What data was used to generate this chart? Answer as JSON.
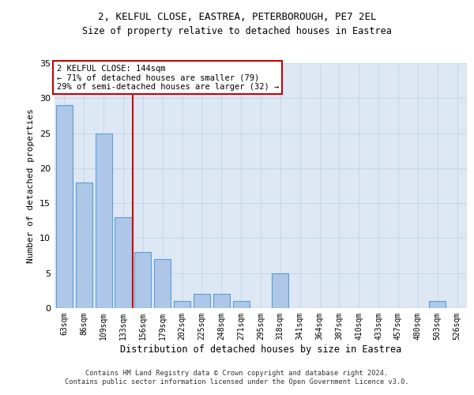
{
  "title_line1": "2, KELFUL CLOSE, EASTREA, PETERBOROUGH, PE7 2EL",
  "title_line2": "Size of property relative to detached houses in Eastrea",
  "xlabel": "Distribution of detached houses by size in Eastrea",
  "ylabel": "Number of detached properties",
  "categories": [
    "63sqm",
    "86sqm",
    "109sqm",
    "133sqm",
    "156sqm",
    "179sqm",
    "202sqm",
    "225sqm",
    "248sqm",
    "271sqm",
    "295sqm",
    "318sqm",
    "341sqm",
    "364sqm",
    "387sqm",
    "410sqm",
    "433sqm",
    "457sqm",
    "480sqm",
    "503sqm",
    "526sqm"
  ],
  "values": [
    29,
    18,
    25,
    13,
    8,
    7,
    1,
    2,
    2,
    1,
    0,
    5,
    0,
    0,
    0,
    0,
    0,
    0,
    0,
    1,
    0
  ],
  "bar_color": "#aec6e8",
  "bar_edge_color": "#5a9fd4",
  "vline_color": "#cc0000",
  "vline_x_index": 3.5,
  "annotation_text": "2 KELFUL CLOSE: 144sqm\n← 71% of detached houses are smaller (79)\n29% of semi-detached houses are larger (32) →",
  "annotation_box_color": "#ffffff",
  "annotation_box_edge_color": "#cc0000",
  "ylim": [
    0,
    35
  ],
  "yticks": [
    0,
    5,
    10,
    15,
    20,
    25,
    30,
    35
  ],
  "grid_color": "#c8d8ea",
  "background_color": "#dde8f4",
  "footer_line1": "Contains HM Land Registry data © Crown copyright and database right 2024.",
  "footer_line2": "Contains public sector information licensed under the Open Government Licence v3.0."
}
